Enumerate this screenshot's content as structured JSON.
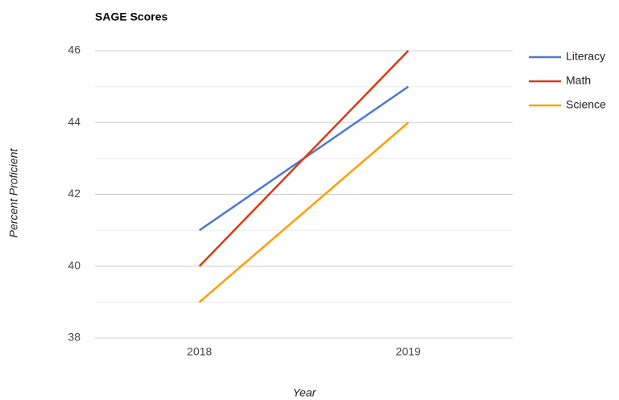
{
  "chart_data": {
    "type": "line",
    "title": "SAGE Scores",
    "x_label": "Year",
    "y_label": "Percent Proficient",
    "categories": [
      "2018",
      "2019"
    ],
    "series": [
      {
        "name": "Literacy",
        "color": "#4a78d6",
        "values": [
          41,
          45
        ]
      },
      {
        "name": "Math",
        "color": "#dc3912",
        "values": [
          40,
          46
        ]
      },
      {
        "name": "Science",
        "color": "#ff9f00",
        "values": [
          39,
          44
        ]
      }
    ],
    "ylim": [
      38,
      46
    ],
    "yticks": [
      38,
      40,
      42,
      44,
      46
    ],
    "minor_yticks": [
      39,
      41,
      43,
      45
    ],
    "grid": true,
    "legend": "right"
  }
}
